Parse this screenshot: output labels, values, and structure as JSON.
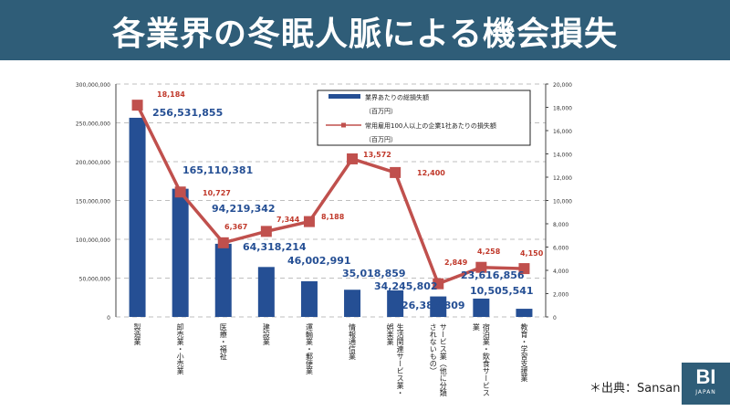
{
  "title": "各業界の冬眠人脈による機会損失",
  "source": "＊出典：Sansan",
  "logo": {
    "main": "BI",
    "sub": "JAPAN"
  },
  "colors": {
    "header": "#2f5d78",
    "bar": "#254f94",
    "line": "#c0504d",
    "bar_label": "#254f94",
    "line_label": "#c0392b"
  },
  "chart_data": {
    "type": "bar+line",
    "categories": [
      "製造業",
      "卸売業・小売業",
      "医療・福祉",
      "建設業",
      "運輸業・郵便業",
      "情報通信業",
      "生活関連サービス業・娯楽業",
      "サービス業（他に分類されないもの）",
      "宿泊業・飲食サービス業",
      "教育・学習支援業"
    ],
    "series": [
      {
        "name": "業界あたりの総損失額（百万円）",
        "type": "bar",
        "axis": "left",
        "values": [
          256531855,
          165110381,
          94219342,
          64318214,
          46002991,
          35018859,
          34245802,
          26387809,
          23616856,
          10505541
        ],
        "labels": [
          "256,531,855",
          "165,110,381",
          "94,219,342",
          "64,318,214",
          "46,002,991",
          "35,018,859",
          "34,245,802",
          "26,387,809",
          "23,616,856",
          "10,505,541"
        ]
      },
      {
        "name": "常用雇用100人以上の企業1社あたりの損失額（百万円）",
        "type": "line",
        "axis": "right",
        "values": [
          18184,
          10727,
          6367,
          7344,
          8188,
          13572,
          12400,
          2849,
          4258,
          4150
        ],
        "labels": [
          "18,184",
          "10,727",
          "6,367",
          "7,344",
          "8,188",
          "13,572",
          "12,400",
          "2,849",
          "4,258",
          "4,150"
        ]
      }
    ],
    "legend": {
      "bar": [
        "業界あたりの総損失額",
        "（百万円）"
      ],
      "line": [
        "常用雇用100人以上の企業1社あたりの損失額",
        "（百万円）"
      ],
      "position": "top-center"
    },
    "left_axis": {
      "range": [
        0,
        300000000
      ],
      "ticks": [
        "0",
        "50,000,000",
        "100,000,000",
        "150,000,000",
        "200,000,000",
        "250,000,000",
        "300,000,000"
      ]
    },
    "right_axis": {
      "range": [
        0,
        20000
      ],
      "ticks": [
        "0",
        "2,000",
        "4,000",
        "6,000",
        "8,000",
        "10,000",
        "12,000",
        "14,000",
        "16,000",
        "18,000",
        "20,000"
      ]
    },
    "grid": "horizontal dashed"
  }
}
